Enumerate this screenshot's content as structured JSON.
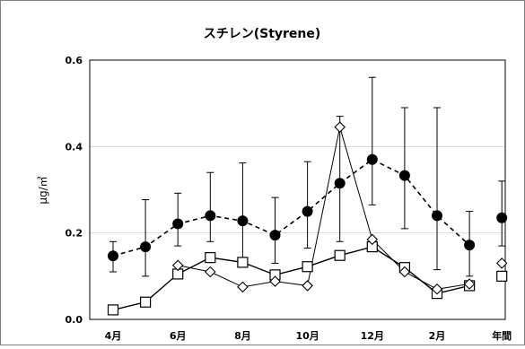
{
  "chart_data": {
    "type": "line",
    "title": "スチレン(Styrene)",
    "ylabel": "μg/㎥",
    "xlabel": "",
    "ylim": [
      0,
      0.6
    ],
    "yticks": [
      "0.0",
      "0.2",
      "0.4",
      "0.6"
    ],
    "yticks_values": [
      0,
      0.2,
      0.4,
      0.6
    ],
    "x": [
      "4月",
      "5月",
      "6月",
      "7月",
      "8月",
      "9月",
      "10月",
      "11月",
      "12月",
      "1月",
      "2月",
      "3月",
      "年間"
    ],
    "x_tick_labels": [
      "4月",
      "6月",
      "8月",
      "10月",
      "12月",
      "2月",
      "年間"
    ],
    "grid": true,
    "series": [
      {
        "style": "dashed line, filled circle markers, with error bars",
        "color": "#000000",
        "values": [
          0.147,
          0.168,
          0.221,
          0.24,
          0.228,
          0.195,
          0.25,
          0.315,
          0.37,
          0.333,
          0.24,
          0.172,
          0.235
        ],
        "error_low": [
          0.11,
          0.1,
          0.17,
          0.18,
          0.13,
          0.13,
          0.165,
          0.18,
          0.265,
          0.21,
          0.115,
          0.1,
          0.17
        ],
        "error_high": [
          0.18,
          0.277,
          0.292,
          0.34,
          0.362,
          0.282,
          0.365,
          0.47,
          0.56,
          0.49,
          0.49,
          0.25,
          0.32
        ]
      },
      {
        "style": "solid line, open diamond markers",
        "color": "#000000",
        "values": [
          null,
          null,
          0.125,
          0.11,
          0.075,
          0.088,
          0.078,
          0.445,
          0.185,
          0.11,
          0.07,
          0.082,
          0.13
        ]
      },
      {
        "style": "solid line, open square markers",
        "color": "#000000",
        "values": [
          0.022,
          0.04,
          0.105,
          0.143,
          0.132,
          0.103,
          0.122,
          0.148,
          0.168,
          0.12,
          0.06,
          0.078,
          0.1
        ]
      }
    ]
  }
}
